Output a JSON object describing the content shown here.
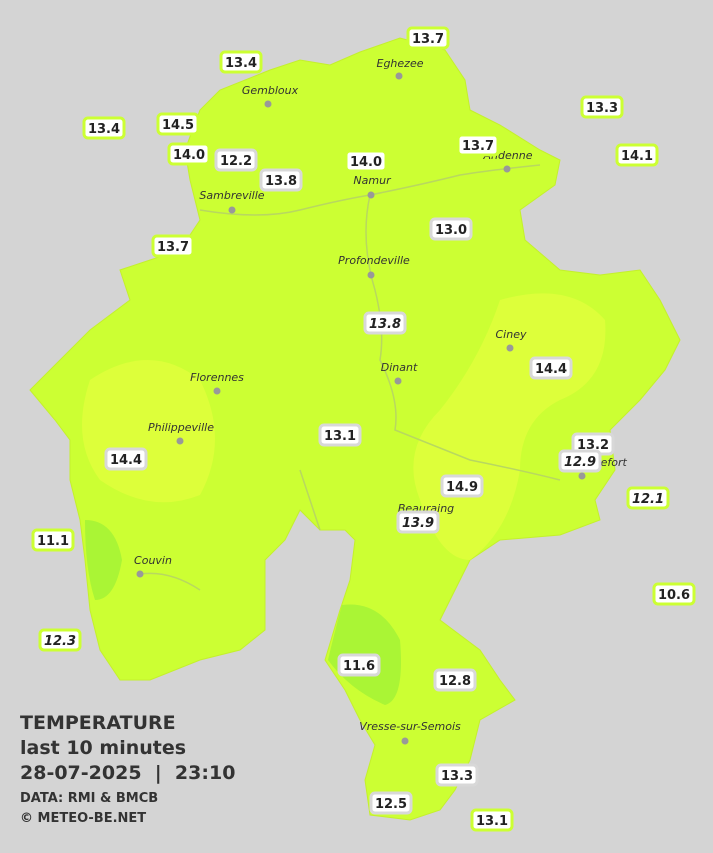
{
  "legend": {
    "title": "TEMPERATURE",
    "period": "last 10 minutes",
    "datetime": "28-07-2025  |  23:10",
    "source": "DATA: RMI & BMCB",
    "copyright": "© METEO-BE.NET"
  },
  "cities": [
    "Eghezee",
    "Gembloux",
    "Andenne",
    "Namur",
    "Sambreville",
    "Profondeville",
    "Ciney",
    "Dinant",
    "Florennes",
    "Philippeville",
    "Rochefort",
    "Beauraing",
    "Couvin",
    "Vresse-sur-Semois"
  ],
  "stations": [
    "13.7",
    "13.4",
    "13.4",
    "14.5",
    "14.0",
    "12.2",
    "13.8",
    "14.0",
    "13.7",
    "13.3",
    "14.1",
    "13.0",
    "13.7",
    "13.8",
    "14.4",
    "13.2",
    "12.9",
    "12.1",
    "13.1",
    "14.4",
    "14.9",
    "13.9",
    "11.1",
    "10.6",
    "12.3",
    "11.6",
    "12.8",
    "13.3",
    "12.5",
    "13.1"
  ]
}
